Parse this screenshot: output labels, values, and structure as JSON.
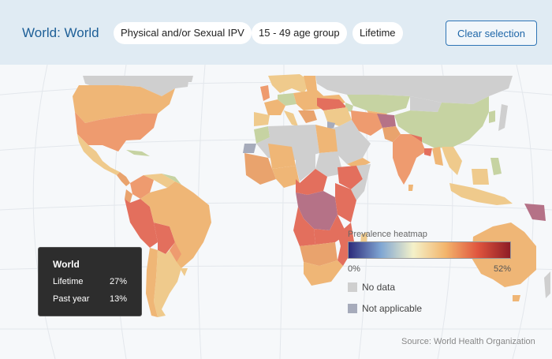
{
  "header": {
    "title": "World: World",
    "chips": [
      "Physical and/or Sexual IPV",
      "15 - 49 age group",
      "Lifetime"
    ],
    "clear_button": "Clear selection"
  },
  "tooltip": {
    "title": "World",
    "rows": [
      {
        "label": "Lifetime",
        "value": "27%"
      },
      {
        "label": "Past year",
        "value": "13%"
      }
    ]
  },
  "legend": {
    "title": "Prevalence heatmap",
    "min_label": "0%",
    "max_label": "52%",
    "gradient": [
      "#2c2a7a",
      "#7fa6d3",
      "#f4f1c9",
      "#f3b56c",
      "#e0553e",
      "#8e1c25"
    ],
    "no_data_label": "No data",
    "no_data_color": "#cfcfcf",
    "not_applicable_label": "Not applicable",
    "not_applicable_color": "#a6abbb"
  },
  "colors": {
    "header_bg": "#e0ebf3",
    "accent": "#1e5f97",
    "ocean": "#f6f8fa",
    "high": "#e36f5d",
    "mid_high": "#ee9b6f",
    "mid": "#efb676",
    "low_mid": "#efca8c",
    "low": "#c6d3a2",
    "nodata": "#cfcfcf",
    "na": "#a6abbb"
  },
  "source": "Source: World Health Organization"
}
